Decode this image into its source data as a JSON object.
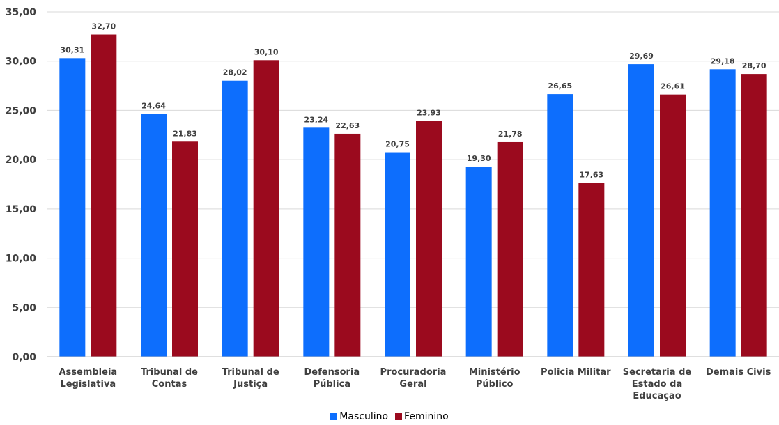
{
  "chart_data": {
    "type": "bar",
    "categories": [
      [
        "Assembleia",
        "Legislativa"
      ],
      [
        "Tribunal de",
        "Contas"
      ],
      [
        "Tribunal de",
        "Justiça"
      ],
      [
        "Defensoria",
        "Pública"
      ],
      [
        "Procuradoria",
        "Geral"
      ],
      [
        "Ministério",
        "Público"
      ],
      [
        "Policia Militar"
      ],
      [
        "Secretaria de",
        "Estado da",
        "Educação"
      ],
      [
        "Demais Civis"
      ]
    ],
    "series": [
      {
        "name": "Masculino",
        "color": "#0d6efd",
        "values": [
          30.31,
          24.64,
          28.02,
          23.24,
          20.75,
          19.3,
          26.65,
          29.69,
          29.18
        ],
        "labels": [
          "30,31",
          "24,64",
          "28,02",
          "23,24",
          "20,75",
          "19,30",
          "26,65",
          "29,69",
          "29,18"
        ]
      },
      {
        "name": "Feminino",
        "color": "#9b0a1e",
        "values": [
          32.7,
          21.83,
          30.1,
          22.63,
          23.93,
          21.78,
          17.63,
          26.61,
          28.7
        ],
        "labels": [
          "32,70",
          "21,83",
          "30,10",
          "22,63",
          "23,93",
          "21,78",
          "17,63",
          "26,61",
          "28,70"
        ]
      }
    ],
    "ylim": [
      0,
      35
    ],
    "yticks": [
      0,
      5,
      10,
      15,
      20,
      25,
      30,
      35
    ],
    "ytick_labels": [
      "0,00",
      "5,00",
      "10,00",
      "15,00",
      "20,00",
      "25,00",
      "30,00",
      "35,00"
    ],
    "grid": true,
    "legend_position": "bottom-center"
  },
  "legend": {
    "masculino": "Masculino",
    "feminino": "Feminino"
  }
}
